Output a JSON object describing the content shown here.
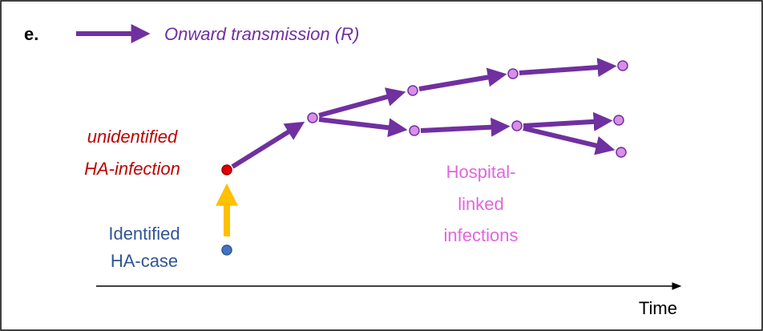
{
  "panel_label": "e.",
  "legend": {
    "label": "Onward transmission (R)"
  },
  "labels": {
    "unidentified": [
      "unidentified",
      "HA-infection"
    ],
    "identified": [
      "Identified",
      "HA-case"
    ],
    "hospital_linked": [
      "Hospital-",
      "linked",
      "infections"
    ]
  },
  "axis": {
    "label": "Time"
  }
}
